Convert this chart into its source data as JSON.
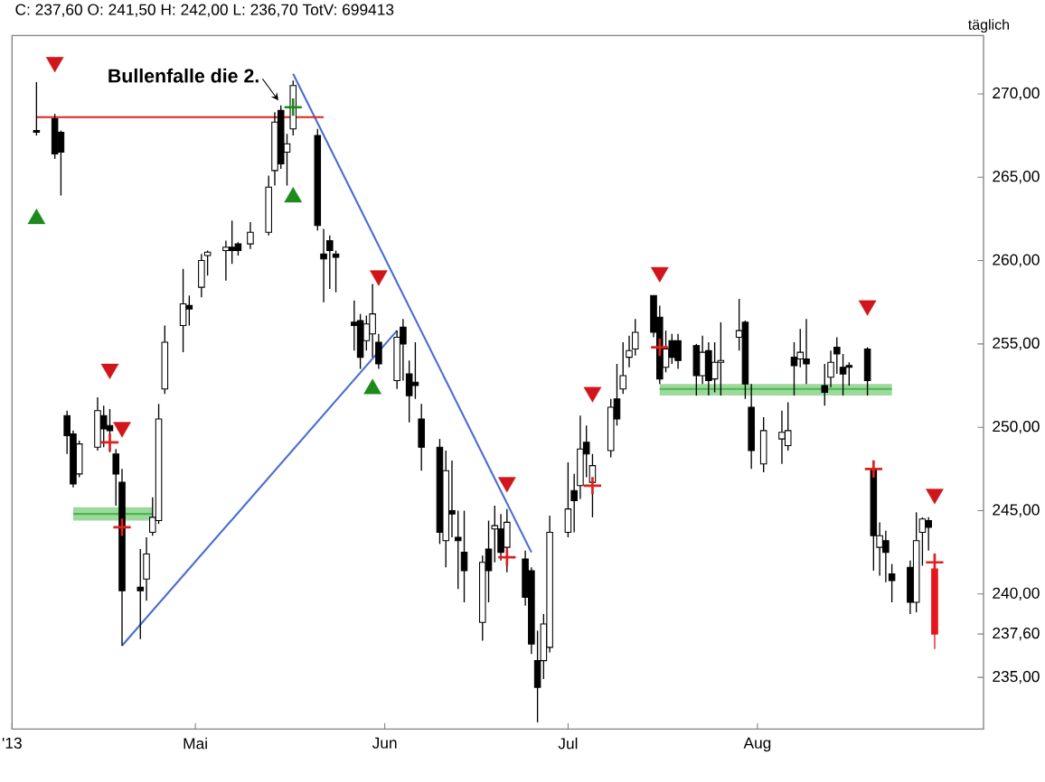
{
  "chart_data": {
    "type": "candlestick",
    "title": "C: 237,60 O: 241,50 H: 242,00 L: 236,70 TotV: 699413",
    "annotations": [
      {
        "text": "Bullenfalle die 2.",
        "x": "2013-05-15",
        "y": 269.5
      },
      "täglich"
    ],
    "x": [
      "2013-04-05",
      "2013-04-08",
      "2013-04-09",
      "2013-04-10",
      "2013-04-11",
      "2013-04-12",
      "2013-04-15",
      "2013-04-16",
      "2013-04-17",
      "2013-04-18",
      "2013-04-19",
      "2013-04-22",
      "2013-04-23",
      "2013-04-24",
      "2013-04-25",
      "2013-04-26",
      "2013-04-29",
      "2013-04-30",
      "2013-05-02",
      "2013-05-03",
      "2013-05-06",
      "2013-05-07",
      "2013-05-08",
      "2013-05-10",
      "2013-05-13",
      "2013-05-14",
      "2013-05-15",
      "2013-05-16",
      "2013-05-17",
      "2013-05-21",
      "2013-05-22",
      "2013-05-23",
      "2013-05-24",
      "2013-05-27",
      "2013-05-28",
      "2013-05-29",
      "2013-05-30",
      "2013-05-31",
      "2013-06-03",
      "2013-06-04",
      "2013-06-05",
      "2013-06-06",
      "2013-06-07",
      "2013-06-10",
      "2013-06-11",
      "2013-06-12",
      "2013-06-13",
      "2013-06-14",
      "2013-06-17",
      "2013-06-18",
      "2013-06-19",
      "2013-06-20",
      "2013-06-21",
      "2013-06-24",
      "2013-06-25",
      "2013-06-26",
      "2013-06-27",
      "2013-06-28",
      "2013-07-01",
      "2013-07-02",
      "2013-07-03",
      "2013-07-04",
      "2013-07-05",
      "2013-07-08",
      "2013-07-09",
      "2013-07-10",
      "2013-07-11",
      "2013-07-12",
      "2013-07-15",
      "2013-07-16",
      "2013-07-17",
      "2013-07-18",
      "2013-07-19",
      "2013-07-22",
      "2013-07-23",
      "2013-07-24",
      "2013-07-25",
      "2013-07-26",
      "2013-07-29",
      "2013-07-30",
      "2013-07-31",
      "2013-08-02",
      "2013-08-05",
      "2013-08-06",
      "2013-08-07",
      "2013-08-08",
      "2013-08-09",
      "2013-08-12",
      "2013-08-13",
      "2013-08-14",
      "2013-08-15",
      "2013-08-16",
      "2013-08-19",
      "2013-08-20",
      "2013-08-21",
      "2013-08-22",
      "2013-08-23",
      "2013-08-26",
      "2013-08-27",
      "2013-08-28",
      "2013-08-29",
      "2013-08-30"
    ],
    "ohlc": [
      [
        267.8,
        270.7,
        267.5,
        267.7
      ],
      [
        268.5,
        268.8,
        266.1,
        266.4
      ],
      [
        267.7,
        267.8,
        263.9,
        266.5
      ],
      [
        250.7,
        251.0,
        248.4,
        249.5
      ],
      [
        249.6,
        249.8,
        246.4,
        246.6
      ],
      [
        247.2,
        249.2,
        247.0,
        249.0
      ],
      [
        248.8,
        251.8,
        248.6,
        251.0
      ],
      [
        250.7,
        251.3,
        248.8,
        249.9
      ],
      [
        250.1,
        251.1,
        248.5,
        249.8
      ],
      [
        248.4,
        248.7,
        245.3,
        247.2
      ],
      [
        246.7,
        247.5,
        236.9,
        240.2
      ],
      [
        240.4,
        242.7,
        237.3,
        240.2
      ],
      [
        240.9,
        243.4,
        239.6,
        242.4
      ],
      [
        243.7,
        245.8,
        243.5,
        244.6
      ],
      [
        244.4,
        251.4,
        244.2,
        250.5
      ],
      [
        252.3,
        256.1,
        252.0,
        255.1
      ],
      [
        256.1,
        259.5,
        254.5,
        257.4
      ],
      [
        257.3,
        257.9,
        256.1,
        257.1
      ],
      [
        258.4,
        260.4,
        257.8,
        260.0
      ],
      [
        260.3,
        260.6,
        259.1,
        260.5
      ],
      [
        260.6,
        261.2,
        258.8,
        260.8
      ],
      [
        260.8,
        262.4,
        259.8,
        260.6
      ],
      [
        261.0,
        261.1,
        260.3,
        260.6
      ],
      [
        261.0,
        262.3,
        260.7,
        261.7
      ],
      [
        261.7,
        265.1,
        261.5,
        264.4
      ],
      [
        265.4,
        268.9,
        264.5,
        268.3
      ],
      [
        269.0,
        269.3,
        265.5,
        265.8
      ],
      [
        266.5,
        267.6,
        264.5,
        267.0
      ],
      [
        267.9,
        270.8,
        267.5,
        270.5
      ],
      [
        267.5,
        267.9,
        261.8,
        262.1
      ],
      [
        260.4,
        261.9,
        257.5,
        260.1
      ],
      [
        261.2,
        261.5,
        258.3,
        260.6
      ],
      [
        260.4,
        260.6,
        258.1,
        260.2
      ],
      [
        256.3,
        257.6,
        254.6,
        256.1
      ],
      [
        256.4,
        256.8,
        253.5,
        254.2
      ],
      [
        255.2,
        256.7,
        254.6,
        256.2
      ],
      [
        255.6,
        258.6,
        254.2,
        256.8
      ],
      [
        255.1,
        255.6,
        253.5,
        253.8
      ],
      [
        252.8,
        255.8,
        252.3,
        255.4
      ],
      [
        256.0,
        256.5,
        252.8,
        255.0
      ],
      [
        253.2,
        254.0,
        250.3,
        251.9
      ],
      [
        252.7,
        255.1,
        251.7,
        252.5
      ],
      [
        250.5,
        251.4,
        247.4,
        248.8
      ],
      [
        248.8,
        249.3,
        243.0,
        243.7
      ],
      [
        243.2,
        248.6,
        241.6,
        247.4
      ],
      [
        245.0,
        248.0,
        243.4,
        244.8
      ],
      [
        243.4,
        245.0,
        240.3,
        243.2
      ],
      [
        242.5,
        245.0,
        239.5,
        241.4
      ],
      [
        238.3,
        242.3,
        237.2,
        241.9
      ],
      [
        242.7,
        244.4,
        239.5,
        241.4
      ],
      [
        243.9,
        245.3,
        241.9,
        244.1
      ],
      [
        243.9,
        244.8,
        242.0,
        242.5
      ],
      [
        242.8,
        245.1,
        241.3,
        244.3
      ],
      [
        242.1,
        242.6,
        239.3,
        239.8
      ],
      [
        241.4,
        241.6,
        236.4,
        237.0
      ],
      [
        236.0,
        237.8,
        232.3,
        234.4
      ],
      [
        236.0,
        238.8,
        234.9,
        238.2
      ],
      [
        236.8,
        244.7,
        236.5,
        243.7
      ],
      [
        243.7,
        247.9,
        243.4,
        245.1
      ],
      [
        246.2,
        247.2,
        243.7,
        245.6
      ],
      [
        246.5,
        250.7,
        245.7,
        248.7
      ],
      [
        249.1,
        250.1,
        247.0,
        248.4
      ],
      [
        246.7,
        248.4,
        244.6,
        247.7
      ],
      [
        248.6,
        251.7,
        248.2,
        251.2
      ],
      [
        251.7,
        253.8,
        250.1,
        250.5
      ],
      [
        252.3,
        255.1,
        252.0,
        253.1
      ],
      [
        254.2,
        255.5,
        253.6,
        254.6
      ],
      [
        254.7,
        256.5,
        254.3,
        255.7
      ],
      [
        257.9,
        257.9,
        255.4,
        255.7
      ],
      [
        256.6,
        257.3,
        252.6,
        252.9
      ],
      [
        253.6,
        255.8,
        253.3,
        254.7
      ],
      [
        255.2,
        255.6,
        253.8,
        254.2
      ],
      [
        255.2,
        255.6,
        253.5,
        254.0
      ],
      [
        254.9,
        255.0,
        251.9,
        253.1
      ],
      [
        253.1,
        255.5,
        252.6,
        254.5
      ],
      [
        254.6,
        255.1,
        251.9,
        252.8
      ],
      [
        252.9,
        255.1,
        252.1,
        253.9
      ],
      [
        253.9,
        256.3,
        251.9,
        254.0
      ],
      [
        255.4,
        257.7,
        254.6,
        255.8
      ],
      [
        256.3,
        256.4,
        251.7,
        252.6
      ],
      [
        251.2,
        252.6,
        247.5,
        248.6
      ],
      [
        247.8,
        250.6,
        247.3,
        249.8
      ],
      [
        249.3,
        251.0,
        247.8,
        249.7
      ],
      [
        248.9,
        251.5,
        248.6,
        249.8
      ],
      [
        254.2,
        255.1,
        251.9,
        253.7
      ],
      [
        254.1,
        255.9,
        253.6,
        254.5
      ],
      [
        254.1,
        256.5,
        252.6,
        253.8
      ],
      [
        252.5,
        253.8,
        251.3,
        252.1
      ],
      [
        253.0,
        254.6,
        252.4,
        253.9
      ],
      [
        254.8,
        255.4,
        253.2,
        254.4
      ],
      [
        253.6,
        254.4,
        251.9,
        253.2
      ],
      [
        253.7,
        253.9,
        252.5,
        253.6
      ],
      [
        254.7,
        254.8,
        251.9,
        252.8
      ],
      [
        247.5,
        247.6,
        241.4,
        243.5
      ],
      [
        242.8,
        244.3,
        241.1,
        243.5
      ],
      [
        243.2,
        243.8,
        240.7,
        242.5
      ],
      [
        241.2,
        241.8,
        239.5,
        240.8
      ],
      [
        241.6,
        242.0,
        238.8,
        239.5
      ],
      [
        239.5,
        244.9,
        238.9,
        243.2
      ],
      [
        243.7,
        244.6,
        241.7,
        244.5
      ],
      [
        244.4,
        244.6,
        242.6,
        244.0
      ],
      [
        241.5,
        242.0,
        236.7,
        237.6
      ]
    ],
    "colors": [
      "#000000",
      "#000000",
      "#000000",
      "#000000",
      "#000000",
      "#ffffff",
      "#ffffff",
      "#000000",
      "#000000",
      "#000000",
      "#000000",
      "#000000",
      "#ffffff",
      "#ffffff",
      "#ffffff",
      "#ffffff",
      "#ffffff",
      "#000000",
      "#ffffff",
      "#ffffff",
      "#ffffff",
      "#000000",
      "#000000",
      "#ffffff",
      "#ffffff",
      "#ffffff",
      "#000000",
      "#ffffff",
      "#ffffff",
      "#000000",
      "#000000",
      "#000000",
      "#000000",
      "#000000",
      "#000000",
      "#ffffff",
      "#ffffff",
      "#000000",
      "#ffffff",
      "#000000",
      "#000000",
      "#000000",
      "#000000",
      "#000000",
      "#ffffff",
      "#000000",
      "#000000",
      "#000000",
      "#ffffff",
      "#000000",
      "#ffffff",
      "#000000",
      "#ffffff",
      "#000000",
      "#000000",
      "#000000",
      "#ffffff",
      "#ffffff",
      "#ffffff",
      "#000000",
      "#ffffff",
      "#000000",
      "#ffffff",
      "#ffffff",
      "#000000",
      "#ffffff",
      "#ffffff",
      "#ffffff",
      "#000000",
      "#000000",
      "#ffffff",
      "#000000",
      "#000000",
      "#000000",
      "#ffffff",
      "#000000",
      "#ffffff",
      "#ffffff",
      "#ffffff",
      "#000000",
      "#000000",
      "#ffffff",
      "#ffffff",
      "#ffffff",
      "#000000",
      "#ffffff",
      "#000000",
      "#000000",
      "#ffffff",
      "#000000",
      "#000000",
      "#000000",
      "#000000",
      "#000000",
      "#ffffff",
      "#000000",
      "#000000",
      "#000000",
      "#ffffff",
      "#ffffff",
      "#000000",
      "#e8141c"
    ],
    "series": [
      {
        "type": "line",
        "color": "#4a6fd0",
        "x": [
          "2013-04-19",
          "2013-06-03"
        ],
        "values": [
          236.9,
          255.8
        ]
      },
      {
        "type": "line",
        "color": "#4a6fd0",
        "x": [
          "2013-05-17",
          "2013-06-25"
        ],
        "values": [
          271.2,
          242.5
        ]
      },
      {
        "type": "line",
        "color": "#e02020",
        "x": [
          "2013-04-05",
          "2013-05-22"
        ],
        "values": [
          268.6,
          268.6
        ]
      },
      {
        "type": "line",
        "color": "#4cb84c",
        "x": [
          "2013-04-11",
          "2013-04-24"
        ],
        "values": [
          244.8,
          244.8
        ],
        "lower": [
          244.4,
          244.4
        ],
        "upper": [
          245.2,
          245.2
        ]
      },
      {
        "type": "line",
        "color": "#4cb84c",
        "x": [
          "2013-07-16",
          "2013-08-23"
        ],
        "values": [
          252.3,
          252.3
        ],
        "lower": [
          251.9,
          251.9
        ],
        "upper": [
          252.6,
          252.6
        ]
      },
      {
        "type": "scatter",
        "marker": "triangle",
        "color": "#d0161c",
        "x": [
          "2013-04-08",
          "2013-04-17",
          "2013-04-19",
          "2013-05-31",
          "2013-06-21",
          "2013-07-05",
          "2013-07-16",
          "2013-08-19",
          "2013-08-30"
        ],
        "values": [
          271.9,
          253.5,
          250.0,
          259.1,
          246.7,
          252.1,
          259.3,
          257.3,
          246.0
        ]
      },
      {
        "type": "scatter",
        "marker": "triangle",
        "color": "#1e8a1e",
        "x": [
          "2013-04-05",
          "2013-05-17",
          "2013-05-30"
        ],
        "values": [
          262.5,
          263.8,
          252.3
        ]
      },
      {
        "type": "scatter",
        "marker": "cross",
        "color": "#e02020",
        "x": [
          "2013-04-17",
          "2013-04-19",
          "2013-06-21",
          "2013-07-05",
          "2013-07-16",
          "2013-08-20",
          "2013-08-30"
        ],
        "values": [
          249.1,
          244.0,
          242.2,
          246.5,
          254.8,
          247.5,
          241.9
        ]
      },
      {
        "type": "scatter",
        "marker": "cross",
        "color": "#1e8a1e",
        "x": [
          "2013-05-17"
        ],
        "values": [
          269.2
        ]
      }
    ],
    "xlim": [
      "2013-04-01",
      "2013-09-07"
    ],
    "xticks": [
      {
        "value": "2013-04-01",
        "label": "'13"
      },
      {
        "value": "2013-05-01",
        "label": "Mai"
      },
      {
        "value": "2013-06-01",
        "label": "Jun"
      },
      {
        "value": "2013-07-01",
        "label": "Jul"
      },
      {
        "value": "2013-08-01",
        "label": "Aug"
      }
    ],
    "ylim": [
      231.9,
      273.5
    ],
    "yticks": [
      {
        "value": 235,
        "label": "235,00"
      },
      {
        "value": 237.6,
        "label": "237,60"
      },
      {
        "value": 240,
        "label": "240,00"
      },
      {
        "value": 245,
        "label": "245,00"
      },
      {
        "value": 250,
        "label": "250,00"
      },
      {
        "value": 255,
        "label": "255,00"
      },
      {
        "value": 260,
        "label": "260,00"
      },
      {
        "value": 265,
        "label": "265,00"
      },
      {
        "value": 270,
        "label": "270,00"
      }
    ]
  }
}
